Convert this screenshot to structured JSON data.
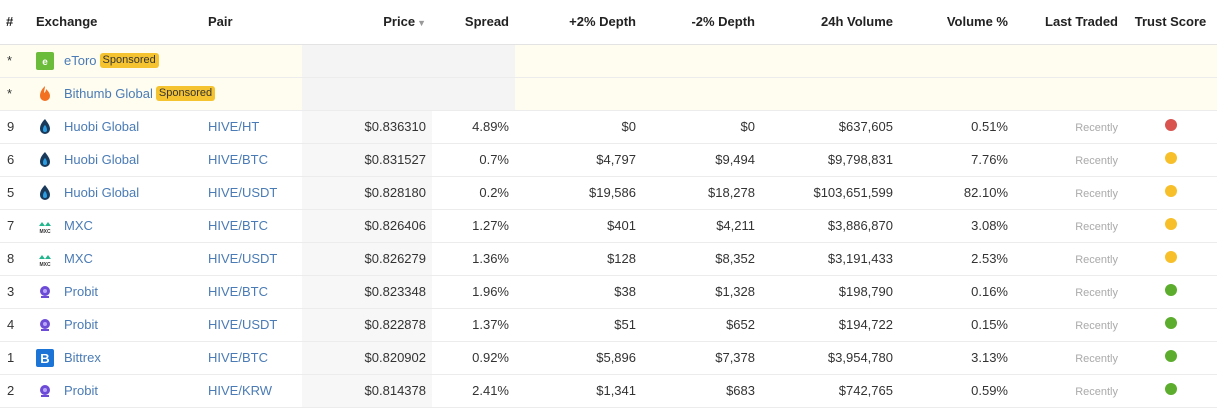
{
  "columns": {
    "num": "#",
    "exchange": "Exchange",
    "pair": "Pair",
    "price": "Price",
    "spread": "Spread",
    "depth_plus": "+2% Depth",
    "depth_minus": "-2% Depth",
    "volume": "24h Volume",
    "volume_pct": "Volume %",
    "last_traded": "Last Traded",
    "trust": "Trust Score"
  },
  "sponsored": [
    {
      "num": "*",
      "exchange": "eToro",
      "badge": "Sponsored",
      "icon": "etoro-icon"
    },
    {
      "num": "*",
      "exchange": "Bithumb Global",
      "badge": "Sponsored",
      "icon": "bithumb-icon"
    }
  ],
  "rows": [
    {
      "num": "9",
      "exchange": "Huobi Global",
      "icon": "huobi-icon",
      "pair": "HIVE/HT",
      "price": "$0.836310",
      "spread": "4.89%",
      "depth_plus": "$0",
      "depth_minus": "$0",
      "volume": "$637,605",
      "volume_pct": "0.51%",
      "last_traded": "Recently",
      "trust_color": "#d9534f"
    },
    {
      "num": "6",
      "exchange": "Huobi Global",
      "icon": "huobi-icon",
      "pair": "HIVE/BTC",
      "price": "$0.831527",
      "spread": "0.7%",
      "depth_plus": "$4,797",
      "depth_minus": "$9,494",
      "volume": "$9,798,831",
      "volume_pct": "7.76%",
      "last_traded": "Recently",
      "trust_color": "#f7c02a"
    },
    {
      "num": "5",
      "exchange": "Huobi Global",
      "icon": "huobi-icon",
      "pair": "HIVE/USDT",
      "price": "$0.828180",
      "spread": "0.2%",
      "depth_plus": "$19,586",
      "depth_minus": "$18,278",
      "volume": "$103,651,599",
      "volume_pct": "82.10%",
      "last_traded": "Recently",
      "trust_color": "#f7c02a"
    },
    {
      "num": "7",
      "exchange": "MXC",
      "icon": "mxc-icon",
      "pair": "HIVE/BTC",
      "price": "$0.826406",
      "spread": "1.27%",
      "depth_plus": "$401",
      "depth_minus": "$4,211",
      "volume": "$3,886,870",
      "volume_pct": "3.08%",
      "last_traded": "Recently",
      "trust_color": "#f7c02a"
    },
    {
      "num": "8",
      "exchange": "MXC",
      "icon": "mxc-icon",
      "pair": "HIVE/USDT",
      "price": "$0.826279",
      "spread": "1.36%",
      "depth_plus": "$128",
      "depth_minus": "$8,352",
      "volume": "$3,191,433",
      "volume_pct": "2.53%",
      "last_traded": "Recently",
      "trust_color": "#f7c02a"
    },
    {
      "num": "3",
      "exchange": "Probit",
      "icon": "probit-icon",
      "pair": "HIVE/BTC",
      "price": "$0.823348",
      "spread": "1.96%",
      "depth_plus": "$38",
      "depth_minus": "$1,328",
      "volume": "$198,790",
      "volume_pct": "0.16%",
      "last_traded": "Recently",
      "trust_color": "#5cad2e"
    },
    {
      "num": "4",
      "exchange": "Probit",
      "icon": "probit-icon",
      "pair": "HIVE/USDT",
      "price": "$0.822878",
      "spread": "1.37%",
      "depth_plus": "$51",
      "depth_minus": "$652",
      "volume": "$194,722",
      "volume_pct": "0.15%",
      "last_traded": "Recently",
      "trust_color": "#5cad2e"
    },
    {
      "num": "1",
      "exchange": "Bittrex",
      "icon": "bittrex-icon",
      "pair": "HIVE/BTC",
      "price": "$0.820902",
      "spread": "0.92%",
      "depth_plus": "$5,896",
      "depth_minus": "$7,378",
      "volume": "$3,954,780",
      "volume_pct": "3.13%",
      "last_traded": "Recently",
      "trust_color": "#5cad2e"
    },
    {
      "num": "2",
      "exchange": "Probit",
      "icon": "probit-icon",
      "pair": "HIVE/KRW",
      "price": "$0.814378",
      "spread": "2.41%",
      "depth_plus": "$1,341",
      "depth_minus": "$683",
      "volume": "$742,765",
      "volume_pct": "0.59%",
      "last_traded": "Recently",
      "trust_color": "#5cad2e"
    }
  ]
}
